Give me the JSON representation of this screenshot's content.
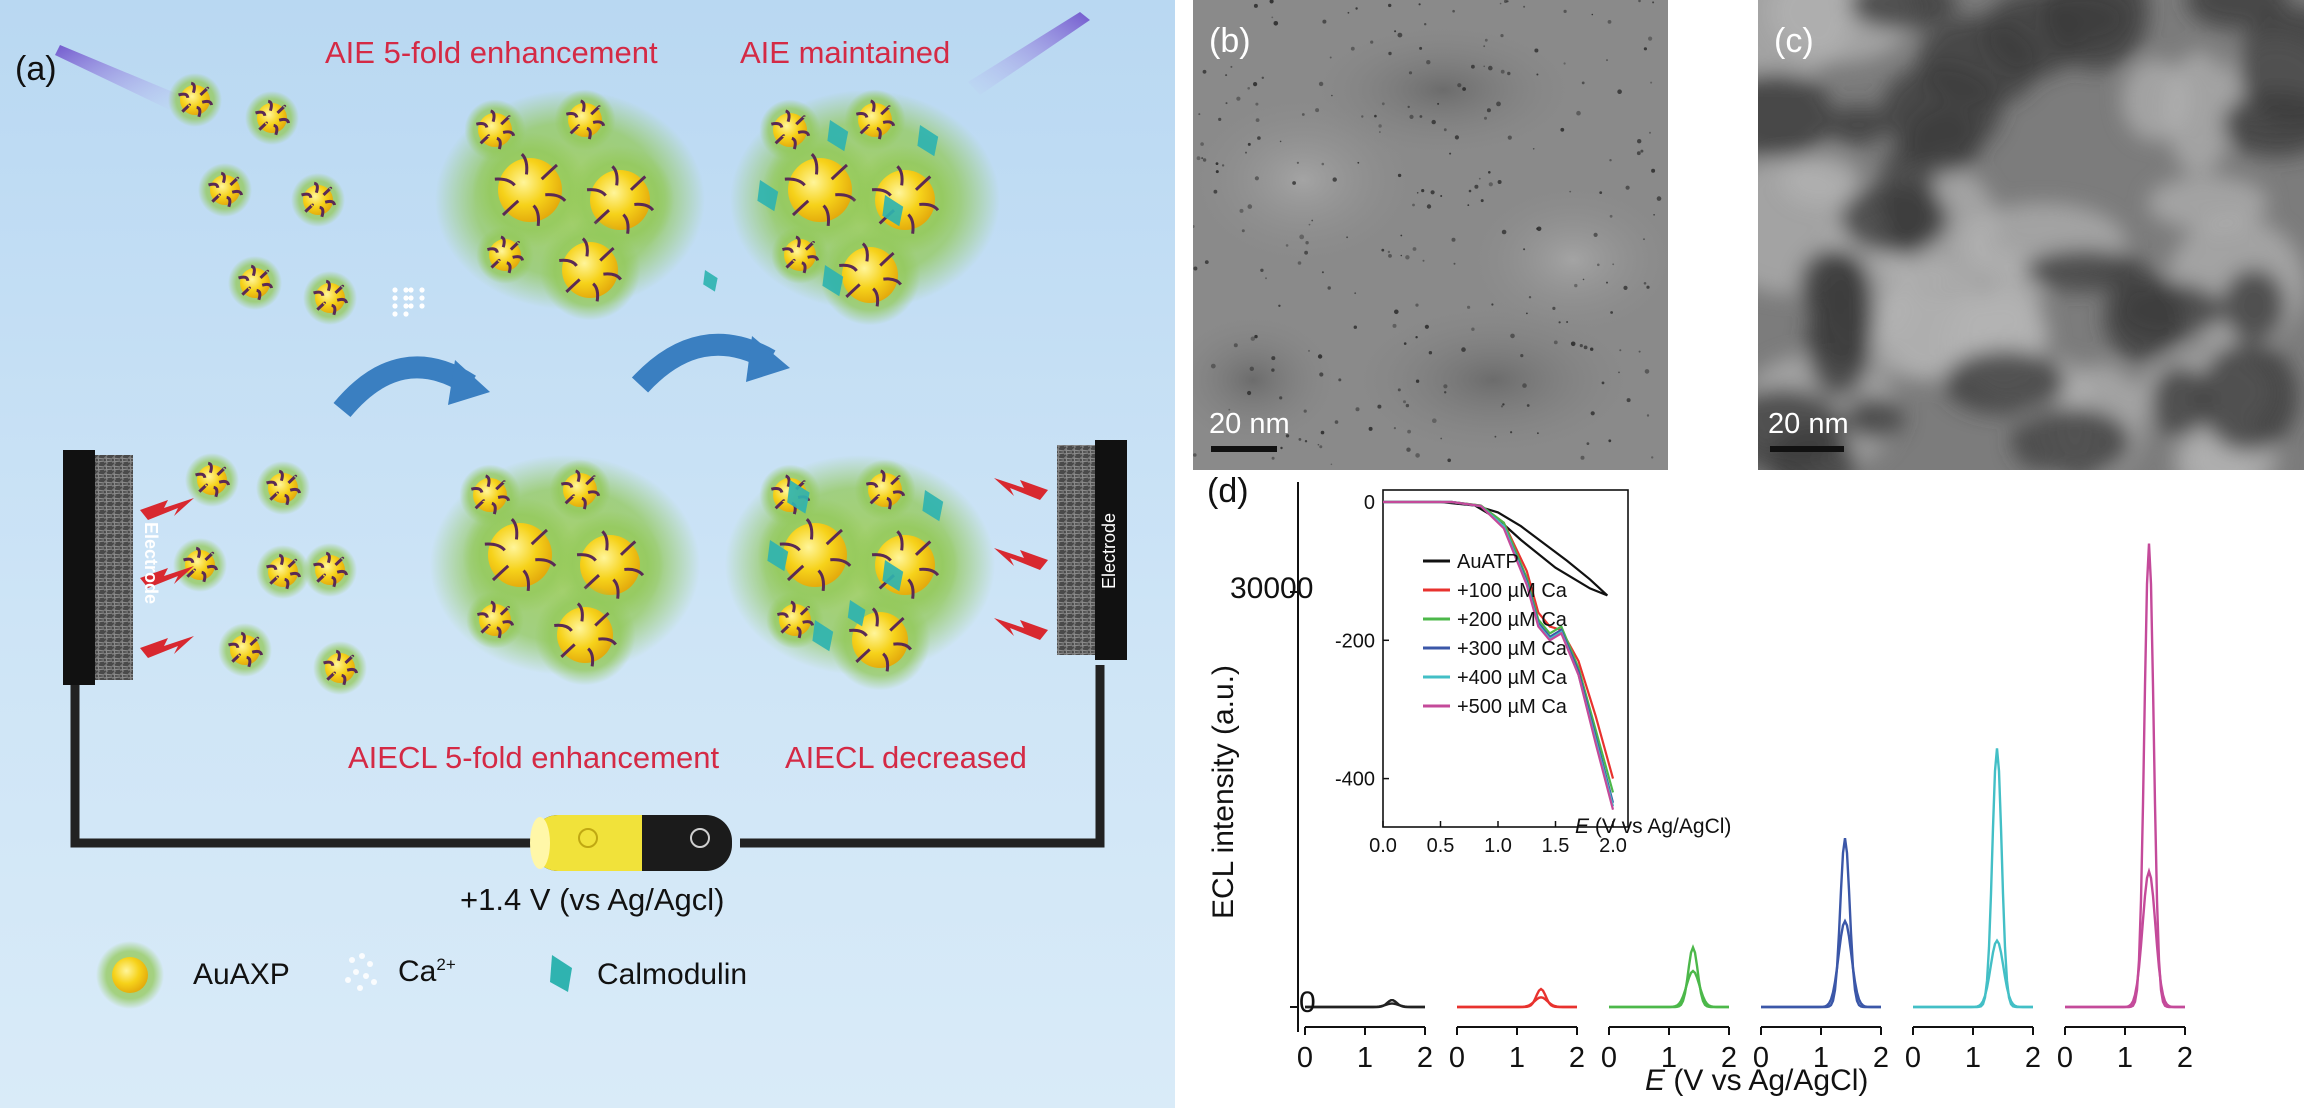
{
  "panel_a": {
    "label": "(a)",
    "aie_enh": "AIE 5-fold enhancement",
    "aie_maint": "AIE maintained",
    "aiecl_enh": "AIECL 5-fold enhancement",
    "aiecl_dec": "AIECL decreased",
    "electrode": "Electrode",
    "voltage": "+1.4 V (vs Ag/Agcl)",
    "legend_auaxp": "AuAXP",
    "legend_ca": "Ca",
    "legend_ca_sup": "2+",
    "legend_cam": "Calmodulin"
  },
  "panel_b": {
    "label": "(b)",
    "scale": "20 nm"
  },
  "panel_c": {
    "label": "(c)",
    "scale": "20 nm"
  },
  "panel_d": {
    "label": "(d)",
    "ylabel": "ECL intensity (a.u.)",
    "ytick_top": "30000",
    "ytick_zero": "0",
    "xlabel_italic": "E",
    "xlabel_rest": " (V vs Ag/AgCl)",
    "inset_xlabel_italic": "E",
    "inset_xlabel_rest": " (V vs Ag/AgCl)"
  },
  "chart_data": [
    {
      "type": "line",
      "xlabel": "E (V vs Ag/AgCl)",
      "ylabel": "ECL intensity (a.u.)",
      "x_ticks": [
        0,
        1,
        2
      ],
      "y_ticks": [
        0,
        30000
      ],
      "ylim": [
        -1000,
        36000
      ],
      "series": [
        {
          "name": "AuATP",
          "color": "#222222",
          "peak_x": 1.45,
          "peak_y": 500,
          "second_y": 250
        },
        {
          "name": "+100 µM Ca",
          "color": "#e8322e",
          "peak_x": 1.4,
          "peak_y": 1300,
          "second_y": 700
        },
        {
          "name": "+200 µM Ca",
          "color": "#4cb84a",
          "peak_x": 1.4,
          "peak_y": 4300,
          "second_y": 2600
        },
        {
          "name": "+300 µM Ca",
          "color": "#3b57a8",
          "peak_x": 1.4,
          "peak_y": 12200,
          "second_y": 6200
        },
        {
          "name": "+400 µM Ca",
          "color": "#43bfc6",
          "peak_x": 1.4,
          "peak_y": 18700,
          "second_y": 4800
        },
        {
          "name": "+500 µM Ca",
          "color": "#c44a9a",
          "peak_x": 1.4,
          "peak_y": 33500,
          "second_y": 9800
        }
      ]
    },
    {
      "type": "line",
      "inset": true,
      "xlabel": "E (V vs Ag/AgCl)",
      "x_ticks": [
        "0.0",
        "0.5",
        "1.0",
        "1.5",
        "2.0"
      ],
      "y_ticks": [
        0,
        -200,
        -400
      ],
      "xlim": [
        0,
        2.0
      ],
      "ylim": [
        -470,
        0
      ],
      "legend": "upper-left",
      "series": [
        {
          "name": "AuATP",
          "color": "#111111",
          "x": [
            0,
            0.5,
            0.8,
            1.0,
            1.2,
            1.4,
            1.6,
            1.8,
            1.95,
            1.8,
            1.5,
            1.2,
            1.0,
            0.8,
            0.5,
            0
          ],
          "y": [
            0,
            0,
            -5,
            -15,
            -35,
            -60,
            -85,
            -112,
            -135,
            -125,
            -95,
            -55,
            -25,
            -5,
            0,
            0
          ]
        },
        {
          "name": "+100 µM Ca",
          "color": "#e8322e",
          "x": [
            0,
            0.6,
            0.85,
            1.05,
            1.25,
            1.35,
            1.45,
            1.55,
            1.7,
            1.85,
            2.0
          ],
          "y": [
            0,
            0,
            -5,
            -30,
            -100,
            -160,
            -180,
            -185,
            -230,
            -310,
            -400
          ]
        },
        {
          "name": "+200 µM Ca",
          "color": "#4cb84a",
          "x": [
            0,
            0.6,
            0.85,
            1.05,
            1.25,
            1.35,
            1.45,
            1.55,
            1.7,
            1.85,
            2.0
          ],
          "y": [
            0,
            0,
            -5,
            -30,
            -110,
            -170,
            -190,
            -180,
            -240,
            -330,
            -420
          ]
        },
        {
          "name": "+300 µM Ca",
          "color": "#3b57a8",
          "x": [
            0,
            0.6,
            0.85,
            1.05,
            1.25,
            1.35,
            1.45,
            1.55,
            1.7,
            1.85,
            2.0
          ],
          "y": [
            0,
            0,
            -6,
            -35,
            -115,
            -175,
            -195,
            -185,
            -245,
            -340,
            -435
          ]
        },
        {
          "name": "+400 µM Ca",
          "color": "#43bfc6",
          "x": [
            0,
            0.6,
            0.85,
            1.05,
            1.25,
            1.35,
            1.45,
            1.55,
            1.7,
            1.85,
            2.0
          ],
          "y": [
            0,
            0,
            -6,
            -35,
            -118,
            -178,
            -198,
            -188,
            -250,
            -345,
            -440
          ]
        },
        {
          "name": "+500 µM Ca",
          "color": "#c44a9a",
          "x": [
            0,
            0.6,
            0.85,
            1.05,
            1.25,
            1.35,
            1.45,
            1.55,
            1.7,
            1.85,
            2.0
          ],
          "y": [
            0,
            0,
            -6,
            -38,
            -120,
            -180,
            -200,
            -190,
            -250,
            -350,
            -445
          ]
        }
      ]
    }
  ],
  "colors": {
    "annotation_red": "#d42a45",
    "nanocluster_yellow": "#f6d21a",
    "halo_green": "#7fc24a",
    "calmodulin_cyan": "#2fb3b0",
    "arrow_blue": "#3a7fc1",
    "spark_red": "#d8282f"
  }
}
